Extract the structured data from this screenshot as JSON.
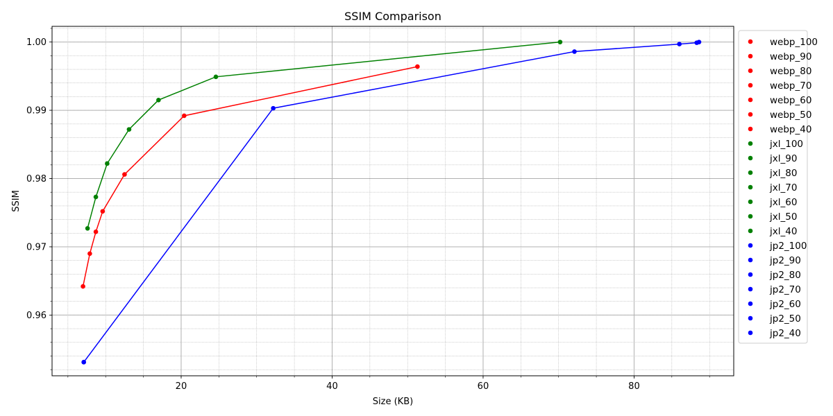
{
  "chart_data": {
    "type": "scatter",
    "title": "SSIM Comparison",
    "xlabel": "Size (KB)",
    "ylabel": "SSIM",
    "xlim": [
      2.9,
      93.2
    ],
    "ylim": [
      0.9511,
      1.0023
    ],
    "xticks": [
      {
        "value": 20,
        "label": "20"
      },
      {
        "value": 40,
        "label": "40"
      },
      {
        "value": 60,
        "label": "60"
      },
      {
        "value": 80,
        "label": "80"
      }
    ],
    "yticks": [
      {
        "value": 0.96,
        "label": "0.96"
      },
      {
        "value": 0.97,
        "label": "0.97"
      },
      {
        "value": 0.98,
        "label": "0.98"
      },
      {
        "value": 0.99,
        "label": "0.99"
      },
      {
        "value": 1.0,
        "label": "1.00"
      }
    ],
    "x_minor_step": 5,
    "y_minor_step": 0.002,
    "grid": true,
    "legend_position": "outside-right",
    "series": [
      {
        "color": "#ff0000",
        "points": [
          {
            "name": "webp_100",
            "x": 51.3,
            "y": 0.9964
          },
          {
            "name": "webp_90",
            "x": 20.4,
            "y": 0.9892
          },
          {
            "name": "webp_80",
            "x": 12.5,
            "y": 0.9806
          },
          {
            "name": "webp_70",
            "x": 9.6,
            "y": 0.9752
          },
          {
            "name": "webp_60",
            "x": 8.7,
            "y": 0.9722
          },
          {
            "name": "webp_50",
            "x": 7.9,
            "y": 0.969
          },
          {
            "name": "webp_40",
            "x": 7.0,
            "y": 0.9642
          }
        ]
      },
      {
        "color": "#008000",
        "points": [
          {
            "name": "jxl_100",
            "x": 70.2,
            "y": 1.0
          },
          {
            "name": "jxl_90",
            "x": 24.6,
            "y": 0.9949
          },
          {
            "name": "jxl_80",
            "x": 17.0,
            "y": 0.9915
          },
          {
            "name": "jxl_70",
            "x": 13.1,
            "y": 0.9872
          },
          {
            "name": "jxl_60",
            "x": 10.2,
            "y": 0.9822
          },
          {
            "name": "jxl_50",
            "x": 8.7,
            "y": 0.9773
          },
          {
            "name": "jxl_40",
            "x": 7.6,
            "y": 0.9727
          }
        ]
      },
      {
        "color": "#0000ff",
        "points": [
          {
            "name": "jp2_100",
            "x": 88.6,
            "y": 1.0
          },
          {
            "name": "jp2_90",
            "x": 88.3,
            "y": 0.9999
          },
          {
            "name": "jp2_80",
            "x": 86.0,
            "y": 0.9997
          },
          {
            "name": "jp2_70",
            "x": 72.1,
            "y": 0.9986
          },
          {
            "name": "jp2_60",
            "x": 32.2,
            "y": 0.9903
          },
          {
            "name": "jp2_50",
            "x": 7.1,
            "y": 0.9531
          },
          {
            "name": "jp2_40",
            "x": 7.1,
            "y": 0.9531
          }
        ]
      }
    ]
  }
}
